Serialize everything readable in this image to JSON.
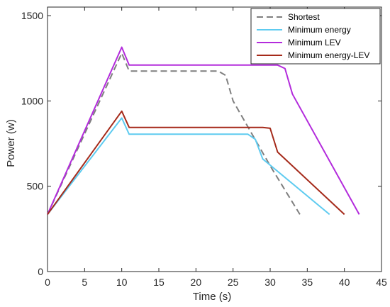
{
  "chart_data": {
    "type": "line",
    "title": "",
    "xlabel": "Time (s)",
    "ylabel": "Power (w)",
    "xlim": [
      0,
      45
    ],
    "ylim": [
      0,
      1550
    ],
    "x_ticks": [
      0,
      5,
      10,
      15,
      20,
      25,
      30,
      35,
      40,
      45
    ],
    "y_ticks": [
      0,
      500,
      1000,
      1500
    ],
    "grid": false,
    "legend_position": "top-right",
    "series": [
      {
        "name": "Shortest",
        "color": "#7f7f7f",
        "dash": "dashed",
        "x": [
          0,
          10,
          11,
          23,
          24,
          25,
          30,
          34
        ],
        "y": [
          335,
          1280,
          1175,
          1175,
          1150,
          1000,
          620,
          335
        ]
      },
      {
        "name": "Minimum energy",
        "color": "#5ecbf0",
        "dash": "solid",
        "x": [
          0,
          10,
          11,
          27,
          28,
          29,
          38
        ],
        "y": [
          335,
          900,
          805,
          805,
          775,
          660,
          335
        ]
      },
      {
        "name": "Minimum LEV",
        "color": "#b32bdc",
        "dash": "solid",
        "x": [
          0,
          10,
          11,
          31,
          32,
          33,
          42
        ],
        "y": [
          335,
          1315,
          1210,
          1210,
          1190,
          1040,
          335
        ]
      },
      {
        "name": "Minimum energy-LEV",
        "color": "#a52a1a",
        "dash": "solid",
        "x": [
          0,
          10,
          11,
          29,
          30,
          31,
          40
        ],
        "y": [
          335,
          940,
          845,
          845,
          840,
          700,
          335
        ]
      }
    ]
  }
}
